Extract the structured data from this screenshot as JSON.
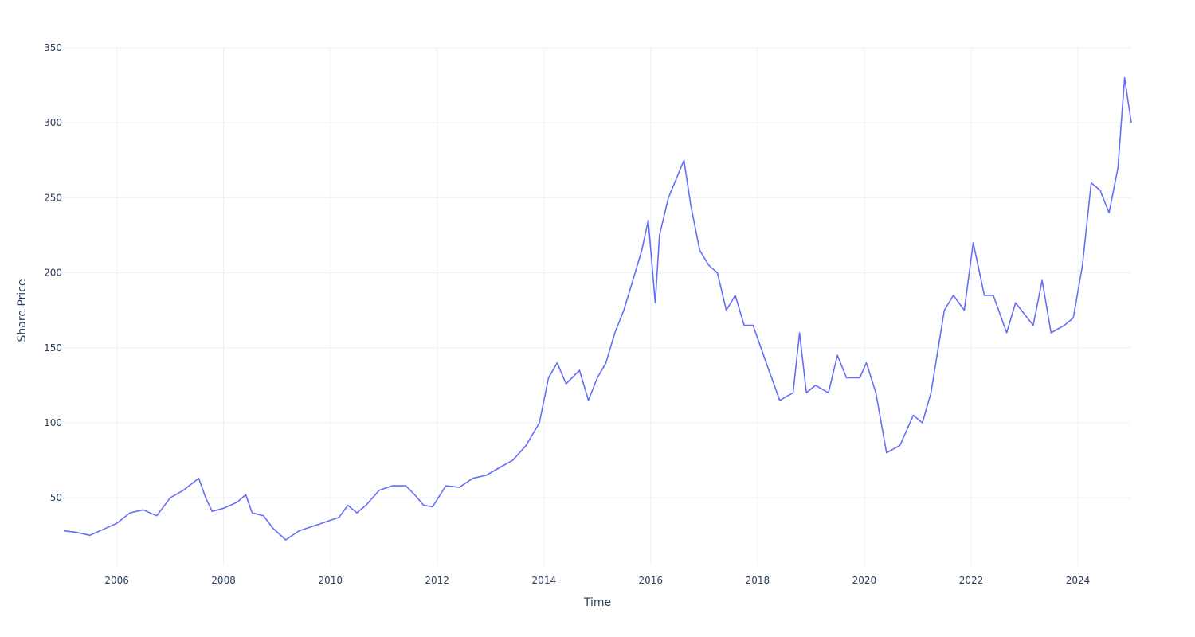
{
  "chart_data": {
    "type": "line",
    "title": "",
    "xlabel": "Time",
    "ylabel": "Share Price",
    "xlim": [
      "2005-01-03",
      "2024-12-31"
    ],
    "ylim": [
      5,
      350
    ],
    "grid": true,
    "legend": "none",
    "x_ticks": [
      {
        "value": "2006-01-01",
        "label": "2006"
      },
      {
        "value": "2008-01-01",
        "label": "2008"
      },
      {
        "value": "2010-01-01",
        "label": "2010"
      },
      {
        "value": "2012-01-01",
        "label": "2012"
      },
      {
        "value": "2014-01-01",
        "label": "2014"
      },
      {
        "value": "2016-01-01",
        "label": "2016"
      },
      {
        "value": "2018-01-01",
        "label": "2018"
      },
      {
        "value": "2020-01-01",
        "label": "2020"
      },
      {
        "value": "2022-01-01",
        "label": "2022"
      },
      {
        "value": "2024-01-01",
        "label": "2024"
      }
    ],
    "y_ticks": [
      {
        "value": 50,
        "label": "50"
      },
      {
        "value": 100,
        "label": "100"
      },
      {
        "value": 150,
        "label": "150"
      },
      {
        "value": 200,
        "label": "200"
      },
      {
        "value": 250,
        "label": "250"
      },
      {
        "value": 300,
        "label": "300"
      },
      {
        "value": 350,
        "label": "350"
      }
    ],
    "series": [
      {
        "color": "#636efa",
        "x": [
          "2005-01-03",
          "2005-04-01",
          "2005-07-01",
          "2005-10-01",
          "2006-01-01",
          "2006-04-01",
          "2006-07-01",
          "2006-10-01",
          "2007-01-01",
          "2007-04-01",
          "2007-07-15",
          "2007-09-01",
          "2007-10-15",
          "2008-01-01",
          "2008-04-01",
          "2008-06-01",
          "2008-07-15",
          "2008-10-01",
          "2008-12-01",
          "2009-03-01",
          "2009-06-01",
          "2009-09-01",
          "2009-12-01",
          "2010-03-01",
          "2010-05-01",
          "2010-07-01",
          "2010-09-01",
          "2010-12-01",
          "2011-03-01",
          "2011-06-01",
          "2011-08-01",
          "2011-10-01",
          "2011-12-01",
          "2012-03-01",
          "2012-06-01",
          "2012-09-01",
          "2012-12-01",
          "2013-03-01",
          "2013-06-01",
          "2013-09-01",
          "2013-12-01",
          "2014-02-01",
          "2014-04-01",
          "2014-06-01",
          "2014-09-01",
          "2014-11-01",
          "2015-01-01",
          "2015-03-01",
          "2015-05-01",
          "2015-07-01",
          "2015-09-01",
          "2015-11-01",
          "2015-12-15",
          "2016-02-01",
          "2016-03-01",
          "2016-05-01",
          "2016-08-15",
          "2016-10-01",
          "2016-12-01",
          "2017-02-01",
          "2017-04-01",
          "2017-06-01",
          "2017-08-01",
          "2017-10-01",
          "2017-12-01",
          "2018-03-01",
          "2018-06-01",
          "2018-09-01",
          "2018-10-15",
          "2018-12-01",
          "2019-02-01",
          "2019-05-01",
          "2019-07-01",
          "2019-09-01",
          "2019-12-01",
          "2020-01-15",
          "2020-03-20",
          "2020-06-01",
          "2020-09-01",
          "2020-12-01",
          "2021-02-01",
          "2021-04-01",
          "2021-07-01",
          "2021-09-01",
          "2021-11-15",
          "2022-01-15",
          "2022-04-01",
          "2022-06-01",
          "2022-09-01",
          "2022-11-01",
          "2023-03-01",
          "2023-05-01",
          "2023-07-01",
          "2023-10-01",
          "2023-12-01",
          "2024-02-01",
          "2024-04-01",
          "2024-06-01",
          "2024-08-01",
          "2024-10-01",
          "2024-11-15",
          "2024-12-31"
        ],
        "y": [
          28,
          27,
          25,
          29,
          33,
          40,
          42,
          38,
          50,
          55,
          63,
          50,
          41,
          43,
          47,
          52,
          40,
          38,
          30,
          22,
          28,
          31,
          34,
          37,
          45,
          40,
          45,
          55,
          58,
          58,
          52,
          45,
          44,
          58,
          57,
          63,
          65,
          70,
          75,
          85,
          100,
          130,
          140,
          126,
          135,
          115,
          130,
          140,
          160,
          175,
          195,
          215,
          235,
          180,
          225,
          250,
          275,
          245,
          215,
          205,
          200,
          175,
          185,
          165,
          165,
          140,
          115,
          120,
          160,
          120,
          125,
          120,
          145,
          130,
          130,
          140,
          120,
          80,
          85,
          105,
          100,
          120,
          175,
          185,
          175,
          220,
          185,
          185,
          160,
          180,
          165,
          195,
          160,
          165,
          170,
          205,
          260,
          255,
          240,
          270,
          330,
          300
        ]
      }
    ]
  }
}
